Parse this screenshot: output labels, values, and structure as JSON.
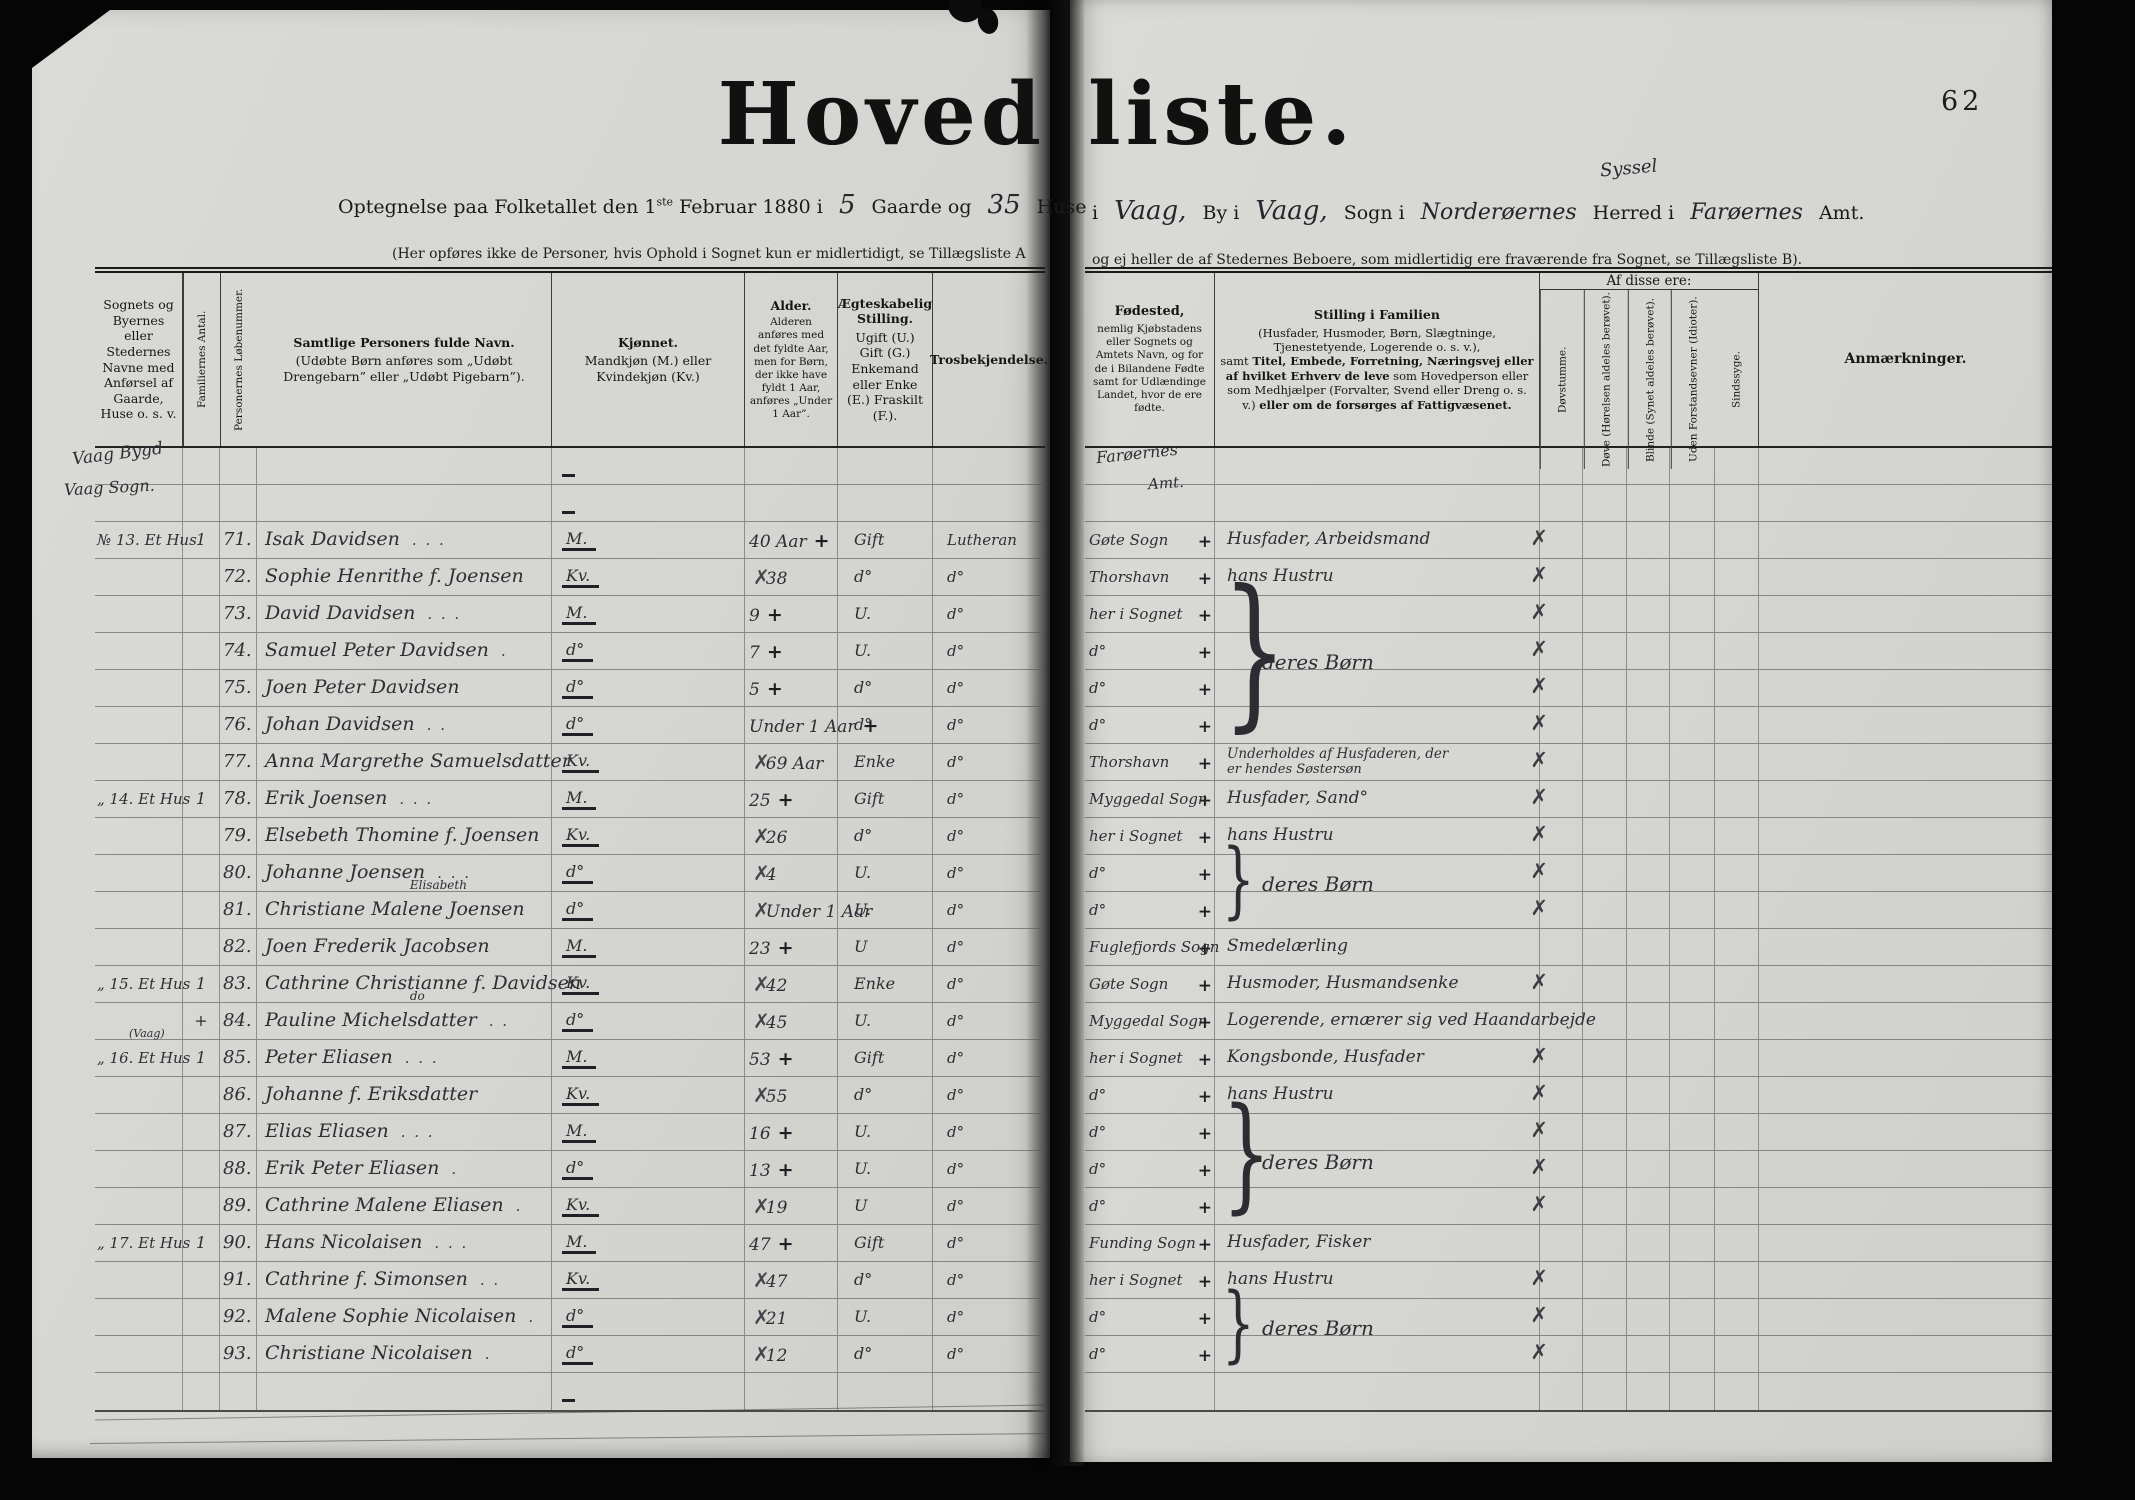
{
  "page_number": "62",
  "title": {
    "left": "Hoved",
    "right": "liste."
  },
  "subtitle": {
    "pre": "Optegnelse paa Folketallet den 1",
    "sup": "ste",
    "mid": " Februar 1880 i",
    "gaarde": "5",
    "gaarde_label": "Gaarde og",
    "huse": "35",
    "huse_label": "Huse",
    "cont_i": "i",
    "by": "Vaag,",
    "by_label": "By i",
    "sogn": "Vaag,",
    "sogn_label": "Sogn i",
    "herred": "Norderøernes",
    "syssel": "Syssel",
    "herred_label": "Herred i",
    "amt": "Farøernes",
    "amt_label": "Amt."
  },
  "notes": {
    "left": "(Her opføres ikke de Personer, hvis Ophold i Sognet kun er midlertidigt, se Tillægsliste A",
    "right": "og ej heller de af Stedernes Beboere, som midlertidig ere fraværende fra Sognet, se Tillægsliste B)."
  },
  "left_headers": {
    "place": "Sognets og Byernes eller Stedernes Navne med Anførsel af Gaarde, Huse o. s. v.",
    "fam": "Familiernes Antal.",
    "no": "Personernes Løbenummer.",
    "name_bold": "Samtlige Personers fulde Navn.",
    "name_note": "(Udøbte Børn anføres som „Udøbt Drengebarn” eller „Udøbt Pigebarn”).",
    "sex_bold": "Kjønnet.",
    "sex_note": "Mandkjøn (M.) eller Kvindekjøn (Kv.)",
    "age_bold": "Alder.",
    "age_note": "Alderen anføres med det fyldte Aar, men for Børn, der ikke have fyldt 1 Aar, anføres „Under 1 Aar”.",
    "mar_bold": "Ægteskabelig Stilling.",
    "mar_note": "Ugift (U.) Gift (G.) Enkemand eller Enke (E.) Fraskilt (F.).",
    "faith_bold": "Trosbekjendelse."
  },
  "right_headers": {
    "birth_bold": "Fødested,",
    "birth_note": "nemlig Kjøbstadens eller Sognets og Amtets Navn, og for de i Bilandene Fødte samt for Udlændinge Landet, hvor de ere fødte.",
    "stil_bold": "Stilling i Familien",
    "stil_note1": "(Husfader, Husmoder, Børn, Slægtninge, Tjenestetyende, Logerende o. s. v.),",
    "stil_note2a": "samt ",
    "stil_note2b": "Titel, Embede, Forretning, Næringsvej eller af hvilket Erhverv de leve",
    "stil_note2c": " som Hovedperson eller som Medhjælper (Forvalter, Svend eller Dreng o. s. v.) ",
    "stil_note2d": "eller om de forsørges af Fattigvæsenet.",
    "group": "Af disse ere:",
    "c1": "Døvstumme.",
    "c2": "Døve (Hørelsen aldeles berøvet).",
    "c3": "Blinde (Synet aldeles berøvet).",
    "c4": "Uden Forstandsevner (Idioter).",
    "c5": "Sindssyge.",
    "anm": "Anmærkninger."
  },
  "place_top": {
    "line1": "Vaag Bygd",
    "line2": "Vaag Sogn."
  },
  "birth_top": {
    "line1": "Farøernes",
    "line2": "Amt."
  },
  "rows": [
    {
      "place": "№ 13. Et Hus",
      "fam": "1",
      "no": "71.",
      "name": "Isak Davidsen",
      "leader": ".      .      .",
      "sex": "M.",
      "age": "40 Aar",
      "apre": "",
      "apost": "+",
      "mar": "Gift",
      "rel": "Lutheran",
      "birth": "Gøte Sogn",
      "bmark": "+",
      "stil": "Husfader, Arbeidsmand",
      "stil2": "",
      "x": "✗"
    },
    {
      "place": "",
      "fam": "",
      "no": "72.",
      "name": "Sophie Henrithe f. Joensen",
      "leader": "",
      "sex": "Kv.",
      "age": "38",
      "apre": "✗",
      "apost": "",
      "mar": "d°",
      "rel": "d°",
      "birth": "Thorshavn",
      "bmark": "+",
      "stil": "hans Hustru",
      "stil2": "",
      "x": "✗"
    },
    {
      "place": "",
      "fam": "",
      "no": "73.",
      "name": "David Davidsen",
      "leader": ".      .      .",
      "sex": "M.",
      "age": "9",
      "apre": "",
      "apost": "+",
      "mar": "U.",
      "rel": "d°",
      "birth": "her i Sognet",
      "bmark": "+",
      "stil": "",
      "stil2": "",
      "x": "✗"
    },
    {
      "place": "",
      "fam": "",
      "no": "74.",
      "name": "Samuel Peter Davidsen",
      "leader": ".",
      "sex": "d°",
      "age": "7",
      "apre": "",
      "apost": "+",
      "mar": "U.",
      "rel": "d°",
      "birth": "d°",
      "bmark": "+",
      "stil": "",
      "stil2": "",
      "x": "✗"
    },
    {
      "place": "",
      "fam": "",
      "no": "75.",
      "name": "Joen Peter Davidsen",
      "leader": "",
      "sex": "d°",
      "age": "5",
      "apre": "",
      "apost": "+",
      "mar": "d°",
      "rel": "d°",
      "birth": "d°",
      "bmark": "+",
      "stil": "",
      "stil2": "",
      "x": "✗"
    },
    {
      "place": "",
      "fam": "",
      "no": "76.",
      "name": "Johan Davidsen",
      "leader": ".      .",
      "sex": "d°",
      "age": "Under 1 Aar",
      "apre": "",
      "apost": "+",
      "mar": "d°",
      "rel": "d°",
      "birth": "d°",
      "bmark": "+",
      "stil": "",
      "stil2": "",
      "x": "✗"
    },
    {
      "place": "",
      "fam": "",
      "no": "77.",
      "name": "Anna Margrethe Samuelsdatter",
      "leader": "",
      "sex": "Kv.",
      "age": "69 Aar",
      "apre": "✗",
      "apost": "",
      "mar": "Enke",
      "rel": "d°",
      "birth": "Thorshavn",
      "bmark": "+",
      "stil": "Underholdes af Husfaderen, der",
      "stil2": "er hendes Søstersøn",
      "x": "✗"
    },
    {
      "place": "„ 14. Et Hus",
      "fam": "1",
      "no": "78.",
      "name": "Erik Joensen",
      "leader": ".      .      .",
      "sex": "M.",
      "age": "25",
      "apre": "",
      "apost": "+",
      "mar": "Gift",
      "rel": "d°",
      "birth": "Myggedal Sogn",
      "bmark": "+",
      "stil": "Husfader, Sand°",
      "stil2": "",
      "x": "✗"
    },
    {
      "place": "",
      "fam": "",
      "no": "79.",
      "name": "Elsebeth Thomine f. Joensen",
      "leader": "",
      "sex": "Kv.",
      "age": "26",
      "apre": "✗",
      "apost": "",
      "mar": "d°",
      "rel": "d°",
      "birth": "her i Sognet",
      "bmark": "+",
      "stil": "hans Hustru",
      "stil2": "",
      "x": "✗"
    },
    {
      "place": "",
      "fam": "",
      "no": "80.",
      "name": "Johanne Joensen",
      "leader": ".      .      .",
      "sex": "d°",
      "age": "4",
      "apre": "✗",
      "apost": "",
      "mar": "U.",
      "rel": "d°",
      "birth": "d°",
      "bmark": "+",
      "stil": "",
      "stil2": "",
      "x": "✗"
    },
    {
      "place": "",
      "fam": "",
      "no": "81.",
      "name": "Christiane Malene Joensen",
      "name_super": "Elisabeth",
      "leader": "",
      "sex": "d°",
      "age": "Under 1 Aar",
      "apre": "✗",
      "apost": "",
      "mar": "U.",
      "rel": "d°",
      "birth": "d°",
      "bmark": "+",
      "stil": "",
      "stil2": "",
      "x": "✗"
    },
    {
      "place": "",
      "fam": "",
      "no": "82.",
      "name": "Joen Frederik Jacobsen",
      "leader": "",
      "sex": "M.",
      "age": "23",
      "apre": "",
      "apost": "+",
      "mar": "U",
      "rel": "d°",
      "birth": "Fuglefjords Sogn",
      "bmark": "+",
      "stil": "Smedelærling",
      "stil2": "",
      "x": ""
    },
    {
      "place": "„ 15. Et Hus",
      "fam": "1",
      "no": "83.",
      "name": "Cathrine Christianne f. Davidsen",
      "leader": "",
      "sex": "Kv.",
      "age": "42",
      "apre": "✗",
      "apost": "",
      "mar": "Enke",
      "rel": "d°",
      "birth": "Gøte Sogn",
      "bmark": "+",
      "stil": "Husmoder, Husmandsenke",
      "stil2": "",
      "x": "✗"
    },
    {
      "place": "",
      "fam": "+",
      "no": "84.",
      "name": "Pauline Michelsdatter",
      "name_super": "do",
      "leader": ".      .",
      "sex": "d°",
      "age": "45",
      "apre": "✗",
      "apost": "",
      "mar": "U.",
      "rel": "d°",
      "birth": "Myggedal Sogn",
      "bmark": "+",
      "stil": "Logerende, ernærer sig ved Haandarbejde",
      "stil2": "",
      "x": ""
    },
    {
      "place": "„ 16. Et Hus",
      "place_super": "(Vaag)",
      "fam": "1",
      "no": "85.",
      "name": "Peter Eliasen",
      "leader": ".      .      .",
      "sex": "M.",
      "age": "53",
      "apre": "",
      "apost": "+",
      "mar": "Gift",
      "rel": "d°",
      "birth": "her i Sognet",
      "bmark": "+",
      "stil": "Kongsbonde, Husfader",
      "stil2": "",
      "x": "✗"
    },
    {
      "place": "",
      "fam": "",
      "no": "86.",
      "name": "Johanne f. Eriksdatter",
      "leader": "",
      "sex": "Kv.",
      "age": "55",
      "apre": "✗",
      "apost": "",
      "mar": "d°",
      "rel": "d°",
      "birth": "d°",
      "bmark": "+",
      "stil": "hans Hustru",
      "stil2": "",
      "x": "✗"
    },
    {
      "place": "",
      "fam": "",
      "no": "87.",
      "name": "Elias Eliasen",
      "leader": ".      .      .",
      "sex": "M.",
      "age": "16",
      "apre": "",
      "apost": "+",
      "mar": "U.",
      "rel": "d°",
      "birth": "d°",
      "bmark": "+",
      "stil": "",
      "stil2": "",
      "x": "✗"
    },
    {
      "place": "",
      "fam": "",
      "no": "88.",
      "name": "Erik Peter Eliasen",
      "leader": ".",
      "sex": "d°",
      "age": "13",
      "apre": "",
      "apost": "+",
      "mar": "U.",
      "rel": "d°",
      "birth": "d°",
      "bmark": "+",
      "stil": "",
      "stil2": "",
      "x": "✗"
    },
    {
      "place": "",
      "fam": "",
      "no": "89.",
      "name": "Cathrine Malene Eliasen",
      "leader": ".",
      "sex": "Kv.",
      "age": "19",
      "apre": "✗",
      "apost": "",
      "mar": "U",
      "rel": "d°",
      "birth": "d°",
      "bmark": "+",
      "stil": "",
      "stil2": "",
      "x": "✗"
    },
    {
      "place": "„ 17. Et Hus",
      "fam": "1",
      "no": "90.",
      "name": "Hans Nicolaisen",
      "leader": ".      .      .",
      "sex": "M.",
      "age": "47",
      "apre": "",
      "apost": "+",
      "mar": "Gift",
      "rel": "d°",
      "birth": "Funding Sogn",
      "bmark": "+",
      "stil": "Husfader, Fisker",
      "stil2": "",
      "x": ""
    },
    {
      "place": "",
      "fam": "",
      "no": "91.",
      "name": "Cathrine f. Simonsen",
      "leader": ".      .",
      "sex": "Kv.",
      "age": "47",
      "apre": "✗",
      "apost": "",
      "mar": "d°",
      "rel": "d°",
      "birth": "her i Sognet",
      "bmark": "+",
      "stil": "hans Hustru",
      "stil2": "",
      "x": "✗"
    },
    {
      "place": "",
      "fam": "",
      "no": "92.",
      "name": "Malene Sophie Nicolaisen",
      "leader": ".",
      "sex": "d°",
      "age": "21",
      "apre": "✗",
      "apost": "",
      "mar": "U.",
      "rel": "d°",
      "birth": "d°",
      "bmark": "+",
      "stil": "",
      "stil2": "",
      "x": "✗"
    },
    {
      "place": "",
      "fam": "",
      "no": "93.",
      "name": "Christiane Nicolaisen",
      "leader": ".",
      "sex": "d°",
      "age": "12",
      "apre": "✗",
      "apost": "",
      "mar": "d°",
      "rel": "d°",
      "birth": "d°",
      "bmark": "+",
      "stil": "",
      "stil2": "",
      "x": "✗"
    }
  ],
  "braces": [
    {
      "start": 2,
      "end": 5,
      "label": "deres Børn"
    },
    {
      "start": 9,
      "end": 10,
      "label": "deres Børn"
    },
    {
      "start": 16,
      "end": 18,
      "label": "deres Børn"
    },
    {
      "start": 21,
      "end": 22,
      "label": "deres Børn"
    }
  ]
}
